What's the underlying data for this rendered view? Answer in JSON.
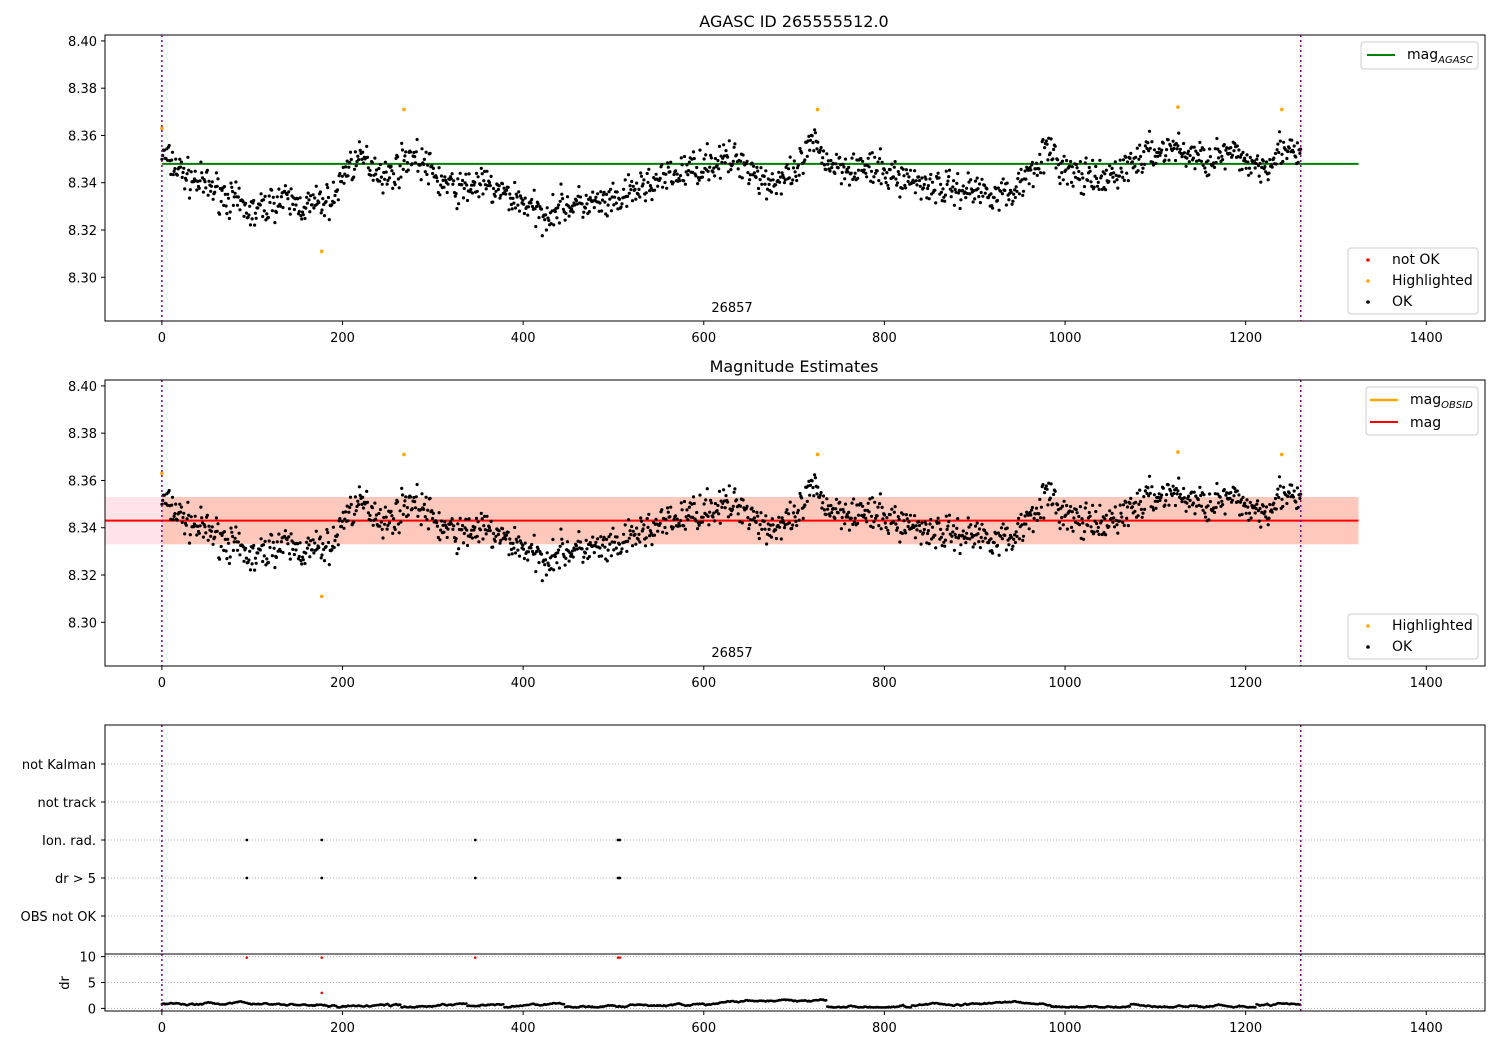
{
  "chart_data": [
    {
      "type": "scatter",
      "title": "AGASC ID 265555512.0",
      "annotation": "26857",
      "xlim": [
        -63,
        1465
      ],
      "ylim": [
        8.2815,
        8.4025
      ],
      "xticks": [
        0,
        200,
        400,
        600,
        800,
        1000,
        1200,
        1400
      ],
      "yticks": [
        8.3,
        8.32,
        8.34,
        8.36,
        8.38,
        8.4
      ],
      "ytick_labels": [
        "8.30",
        "8.32",
        "8.34",
        "8.36",
        "8.38",
        "8.40"
      ],
      "grid": false,
      "lines": [
        {
          "name": "mag",
          "name_sub": "AGASC",
          "y": 8.348,
          "x_range": [
            0,
            1325
          ],
          "color": "#008000"
        }
      ],
      "vlines": [
        0,
        1261
      ],
      "highlighted": [
        [
          0,
          8.363
        ],
        [
          177,
          8.311
        ],
        [
          268,
          8.371
        ],
        [
          726,
          8.371
        ],
        [
          1125,
          8.372
        ],
        [
          1240,
          8.371
        ]
      ],
      "trend": [
        [
          0,
          8.352
        ],
        [
          30,
          8.342
        ],
        [
          60,
          8.337
        ],
        [
          80,
          8.332
        ],
        [
          100,
          8.327
        ],
        [
          130,
          8.333
        ],
        [
          160,
          8.33
        ],
        [
          190,
          8.333
        ],
        [
          205,
          8.347
        ],
        [
          225,
          8.35
        ],
        [
          250,
          8.342
        ],
        [
          275,
          8.352
        ],
        [
          290,
          8.348
        ],
        [
          310,
          8.34
        ],
        [
          330,
          8.337
        ],
        [
          350,
          8.34
        ],
        [
          380,
          8.335
        ],
        [
          400,
          8.332
        ],
        [
          420,
          8.326
        ],
        [
          440,
          8.33
        ],
        [
          470,
          8.331
        ],
        [
          500,
          8.331
        ],
        [
          530,
          8.338
        ],
        [
          560,
          8.342
        ],
        [
          600,
          8.348
        ],
        [
          640,
          8.35
        ],
        [
          670,
          8.34
        ],
        [
          700,
          8.342
        ],
        [
          720,
          8.357
        ],
        [
          740,
          8.348
        ],
        [
          780,
          8.346
        ],
        [
          820,
          8.342
        ],
        [
          860,
          8.338
        ],
        [
          900,
          8.337
        ],
        [
          940,
          8.335
        ],
        [
          980,
          8.354
        ],
        [
          1000,
          8.345
        ],
        [
          1040,
          8.34
        ],
        [
          1060,
          8.345
        ],
        [
          1090,
          8.352
        ],
        [
          1120,
          8.355
        ],
        [
          1150,
          8.35
        ],
        [
          1180,
          8.352
        ],
        [
          1220,
          8.347
        ],
        [
          1240,
          8.355
        ],
        [
          1261,
          8.35
        ]
      ],
      "scatter_amplitude": 0.005,
      "x_end": 1261,
      "legend": [
        {
          "label": "not OK",
          "color": "#ff0000"
        },
        {
          "label": "Highlighted",
          "color": "#ffa500"
        },
        {
          "label": "OK",
          "color": "#000000"
        }
      ]
    },
    {
      "type": "scatter",
      "title": "Magnitude Estimates",
      "annotation": "26857",
      "xlim": [
        -63,
        1465
      ],
      "ylim": [
        8.2815,
        8.4025
      ],
      "xticks": [
        0,
        200,
        400,
        600,
        800,
        1000,
        1200,
        1400
      ],
      "yticks": [
        8.3,
        8.32,
        8.34,
        8.36,
        8.38,
        8.4
      ],
      "ytick_labels": [
        "8.30",
        "8.32",
        "8.34",
        "8.36",
        "8.38",
        "8.40"
      ],
      "grid": false,
      "lines": [
        {
          "name": "mag",
          "name_sub": "OBSID",
          "y": 8.343,
          "x_range": [
            0,
            1325
          ],
          "color": "#ffa500"
        },
        {
          "name": "mag",
          "name_sub": "",
          "y": 8.343,
          "x_range": [
            -63,
            1325
          ],
          "color": "#ff0000"
        }
      ],
      "bands": [
        {
          "y0": 8.333,
          "y1": 8.353,
          "x_range": [
            -63,
            1325
          ],
          "color": "#ffc0cb",
          "opacity": 0.45
        },
        {
          "y0": 8.333,
          "y1": 8.353,
          "x_range": [
            0,
            1325
          ],
          "color": "#ffa07a",
          "opacity": 0.4
        }
      ],
      "vlines": [
        0,
        1261
      ],
      "legend": [
        {
          "label": "Highlighted",
          "color": "#ffa500"
        },
        {
          "label": "OK",
          "color": "#000000"
        }
      ]
    },
    {
      "type": "scatter",
      "title": "",
      "xlim": [
        -63,
        1465
      ],
      "xticks": [
        0,
        200,
        400,
        600,
        800,
        1000,
        1200,
        1400
      ],
      "categories": [
        "not Kalman",
        "not track",
        "Ion. rad.",
        "dr > 5",
        "OBS not OK"
      ],
      "flag_points": {
        "Ion. rad.": [
          94,
          177,
          347,
          505,
          507
        ],
        "dr > 5": [
          94,
          177,
          347,
          505,
          507
        ]
      },
      "vlines": [
        0,
        1261
      ],
      "dr": {
        "ylabel": "dr",
        "ylim": [
          -0.5,
          10.5
        ],
        "yticks": [
          0,
          5,
          10
        ],
        "outliers": [
          [
            94,
            9.8
          ],
          [
            177,
            9.8
          ],
          [
            177,
            3.0
          ],
          [
            347,
            9.8
          ],
          [
            505,
            9.8
          ],
          [
            507,
            9.8
          ]
        ],
        "baseline_range": [
          0.2,
          1.7
        ]
      }
    }
  ]
}
